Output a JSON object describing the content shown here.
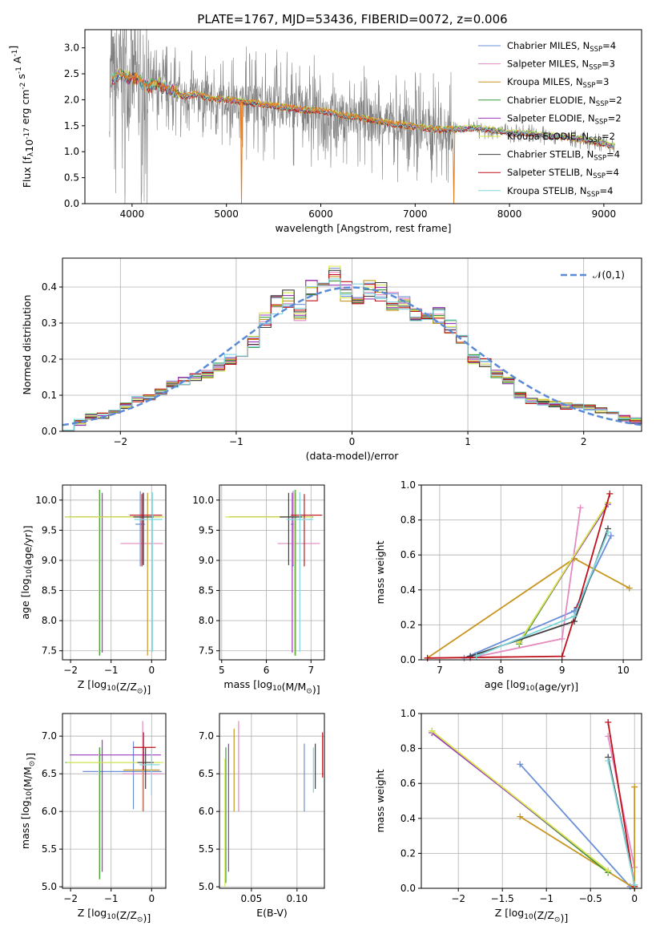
{
  "figure_title": "PLATE=1767, MJD=53436, FIBERID=0072, z=0.006",
  "models": [
    {
      "label": "Chabrier MILES, N$_{SSP}$=4",
      "label_main": "Chabrier MILES, N",
      "label_sub": "SSP",
      "label_end": "=4",
      "color": "#6a8fd8"
    },
    {
      "label": "Salpeter MILES, N$_{SSP}$=3",
      "label_main": "Salpeter MILES, N",
      "label_sub": "SSP",
      "label_end": "=3",
      "color": "#e38ac0"
    },
    {
      "label": "Kroupa MILES, N$_{SSP}$=3",
      "label_main": "Kroupa MILES, N",
      "label_sub": "SSP",
      "label_end": "=3",
      "color": "#c8961e"
    },
    {
      "label": "Chabrier ELODIE, N$_{SSP}$=2",
      "label_main": "Chabrier ELODIE, N",
      "label_sub": "SSP",
      "label_end": "=2",
      "color": "#3a9a3a"
    },
    {
      "label": "Salpeter ELODIE, N$_{SSP}$=2",
      "label_main": "Salpeter ELODIE, N",
      "label_sub": "SSP",
      "label_end": "=2",
      "color": "#9a3ab8"
    },
    {
      "label": "Kroupa ELODIE, N$_{SSP}$=2",
      "label_main": "Kroupa ELODIE, N",
      "label_sub": "SSP",
      "label_end": "=2",
      "color": "#d8e84a"
    },
    {
      "label": "Chabrier STELIB, N$_{SSP}$=4",
      "label_main": "Chabrier STELIB, N",
      "label_sub": "SSP",
      "label_end": "=4",
      "color": "#404040"
    },
    {
      "label": "Salpeter STELIB, N$_{SSP}$=4",
      "label_main": "Salpeter STELIB, N",
      "label_sub": "SSP",
      "label_end": "=4",
      "color": "#c0101a"
    },
    {
      "label": "Kroupa STELIB, N$_{SSP}$=4",
      "label_main": "Kroupa STELIB, N",
      "label_sub": "SSP",
      "label_end": "=4",
      "color": "#7fd6dc"
    }
  ],
  "colors": {
    "data_spectrum": "#808080",
    "model_spectrum": "#e07b20",
    "gauss": "#5b8bd6",
    "grid": "#b0b0b0"
  },
  "chart_data": [
    {
      "type": "line",
      "panel": "spectrum",
      "xlabel": "wavelength [Angstrom, rest frame]",
      "ylabel": "Flux [f$_\\lambda$10$^{-17}$ erg cm$^{-2}$ s$^{-1}$ A$^{-1}$]",
      "xlim": [
        3500,
        9400
      ],
      "ylim": [
        0,
        3.35
      ],
      "xticks": [
        4000,
        5000,
        6000,
        7000,
        8000,
        9000
      ],
      "yticks": [
        0.0,
        0.5,
        1.0,
        1.5,
        2.0,
        2.5,
        3.0
      ],
      "grid": false,
      "legend": "upper right",
      "continuum_x": [
        3760,
        3850,
        3950,
        4050,
        4150,
        4250,
        4400,
        4550,
        4700,
        4850,
        5000,
        5200,
        5400,
        5600,
        5800,
        6000,
        6200,
        6400,
        6600,
        6800,
        7000,
        7200,
        7400,
        7600,
        7800,
        8000,
        8200,
        8400,
        8600,
        8800,
        9000,
        9100
      ],
      "continuum_y": [
        2.35,
        2.5,
        2.4,
        2.42,
        2.25,
        2.3,
        2.2,
        2.05,
        2.1,
        2.0,
        2.0,
        1.95,
        1.9,
        1.85,
        1.8,
        1.78,
        1.7,
        1.65,
        1.58,
        1.52,
        1.48,
        1.42,
        1.42,
        1.45,
        1.42,
        1.35,
        1.35,
        1.3,
        1.28,
        1.22,
        1.15,
        1.1
      ]
    },
    {
      "type": "bar",
      "panel": "residuals",
      "xlabel": "(data-model)/error",
      "ylabel": "Normed distribution",
      "xlim": [
        -2.5,
        2.5
      ],
      "ylim": [
        0,
        0.48
      ],
      "xticks": [
        -2,
        -1,
        0,
        1,
        2
      ],
      "yticks": [
        0.0,
        0.1,
        0.2,
        0.3,
        0.4
      ],
      "grid": true,
      "legend": "upper right",
      "gauss_label": "$\\mathcal{N}(0,1)$",
      "bin_edges": [
        -2.5,
        -2.4,
        -2.3,
        -2.2,
        -2.1,
        -2.0,
        -1.9,
        -1.8,
        -1.7,
        -1.6,
        -1.5,
        -1.4,
        -1.3,
        -1.2,
        -1.1,
        -1.0,
        -0.9,
        -0.8,
        -0.7,
        -0.6,
        -0.5,
        -0.4,
        -0.3,
        -0.2,
        -0.1,
        0.0,
        0.1,
        0.2,
        0.3,
        0.4,
        0.5,
        0.6,
        0.7,
        0.8,
        0.9,
        1.0,
        1.1,
        1.2,
        1.3,
        1.4,
        1.5,
        1.6,
        1.7,
        1.8,
        1.9,
        2.0,
        2.1,
        2.2,
        2.3,
        2.4,
        2.5
      ],
      "hist_mean": [
        0.012,
        0.025,
        0.04,
        0.045,
        0.05,
        0.07,
        0.09,
        0.095,
        0.11,
        0.13,
        0.14,
        0.15,
        0.16,
        0.18,
        0.2,
        0.21,
        0.25,
        0.31,
        0.35,
        0.37,
        0.33,
        0.39,
        0.42,
        0.43,
        0.39,
        0.38,
        0.39,
        0.385,
        0.36,
        0.36,
        0.33,
        0.32,
        0.32,
        0.29,
        0.25,
        0.2,
        0.19,
        0.16,
        0.14,
        0.1,
        0.085,
        0.08,
        0.075,
        0.07,
        0.07,
        0.065,
        0.06,
        0.05,
        0.035,
        0.03
      ],
      "gauss_mean": 0,
      "gauss_sigma": 1
    },
    {
      "type": "scatter",
      "panel": "age_vs_Z",
      "xlabel": "Z [log$_{10}$(Z/Z$_\\odot$)]",
      "ylabel": "age  [log$_{10}$(age/yr)]",
      "xlim": [
        -2.2,
        0.35
      ],
      "ylim": [
        7.35,
        10.25
      ],
      "xticks": [
        -2,
        -1,
        0
      ],
      "yticks": [
        7.5,
        8.0,
        8.5,
        9.0,
        9.5,
        10.0
      ],
      "grid": true,
      "crosses": [
        {
          "model": 0,
          "x": -0.28,
          "xerr": [
            0.12,
            0.12
          ],
          "y": 9.6,
          "yerr": [
            0.7,
            0.55
          ]
        },
        {
          "model": 1,
          "x": -0.22,
          "xerr": [
            0.55,
            0.5
          ],
          "y": 9.28,
          "yerr": [
            0.35,
            0.85
          ]
        },
        {
          "model": 2,
          "x": -0.1,
          "xerr": [
            0.9,
            0.4
          ],
          "y": 9.72,
          "yerr": [
            2.3,
            0.4
          ]
        },
        {
          "model": 3,
          "x": -1.28,
          "xerr": [
            0.85,
            1.5
          ],
          "y": 9.72,
          "yerr": [
            2.3,
            0.45
          ]
        },
        {
          "model": 4,
          "x": -1.22,
          "xerr": [
            0.8,
            1.4
          ],
          "y": 9.72,
          "yerr": [
            2.25,
            0.4
          ]
        },
        {
          "model": 5,
          "x": -1.3,
          "xerr": [
            0.82,
            1.6
          ],
          "y": 9.72,
          "yerr": [
            2.3,
            0.45
          ]
        },
        {
          "model": 6,
          "x": -0.2,
          "xerr": [
            0.25,
            0.25
          ],
          "y": 9.72,
          "yerr": [
            0.8,
            0.4
          ]
        },
        {
          "model": 7,
          "x": -0.24,
          "xerr": [
            0.3,
            0.5
          ],
          "y": 9.75,
          "yerr": [
            0.85,
            0.35
          ]
        },
        {
          "model": 8,
          "x": 0.02,
          "xerr": [
            0.45,
            0.25
          ],
          "y": 9.68,
          "yerr": [
            2.2,
            0.45
          ]
        }
      ]
    },
    {
      "type": "scatter",
      "panel": "age_vs_mass",
      "xlabel": "mass [log$_{10}$(M/M$_\\odot$)]",
      "ylabel": "",
      "xlim": [
        4.95,
        7.3
      ],
      "ylim": [
        7.35,
        10.25
      ],
      "xticks": [
        5,
        6,
        7
      ],
      "yticks": [
        7.5,
        8.0,
        8.5,
        9.0,
        9.5,
        10.0
      ],
      "grid": true,
      "crosses": [
        {
          "model": 0,
          "x": 6.6,
          "xerr": [
            0.05,
            0.05
          ],
          "y": 9.6,
          "yerr": [
            0.7,
            0.55
          ]
        },
        {
          "model": 1,
          "x": 6.6,
          "xerr": [
            0.35,
            0.6
          ],
          "y": 9.28,
          "yerr": [
            0.35,
            0.85
          ]
        },
        {
          "model": 2,
          "x": 6.65,
          "xerr": [
            1.5,
            0.3
          ],
          "y": 9.72,
          "yerr": [
            2.3,
            0.4
          ]
        },
        {
          "model": 3,
          "x": 6.65,
          "xerr": [
            1.5,
            0.4
          ],
          "y": 9.72,
          "yerr": [
            2.3,
            0.45
          ]
        },
        {
          "model": 4,
          "x": 6.58,
          "xerr": [
            1.4,
            0.4
          ],
          "y": 9.72,
          "yerr": [
            2.25,
            0.4
          ]
        },
        {
          "model": 5,
          "x": 6.63,
          "xerr": [
            1.55,
            0.4
          ],
          "y": 9.72,
          "yerr": [
            2.3,
            0.45
          ]
        },
        {
          "model": 6,
          "x": 6.5,
          "xerr": [
            0.2,
            0.3
          ],
          "y": 9.72,
          "yerr": [
            0.8,
            0.4
          ]
        },
        {
          "model": 7,
          "x": 6.85,
          "xerr": [
            0.3,
            0.4
          ],
          "y": 9.75,
          "yerr": [
            0.85,
            0.35
          ]
        },
        {
          "model": 8,
          "x": 6.75,
          "xerr": [
            0.3,
            0.3
          ],
          "y": 9.68,
          "yerr": [
            2.2,
            0.45
          ]
        }
      ]
    },
    {
      "type": "line",
      "panel": "mass_weight_vs_age",
      "xlabel": "age  [log$_{10}$(age/yr)]",
      "ylabel": "mass weight",
      "xlim": [
        6.7,
        10.3
      ],
      "ylim": [
        0,
        1.0
      ],
      "xticks": [
        7,
        8,
        9,
        10
      ],
      "yticks": [
        0.0,
        0.2,
        0.4,
        0.6,
        0.8,
        1.0
      ],
      "grid": true,
      "series": [
        {
          "model": 0,
          "x": [
            7.4,
            9.2,
            9.8
          ],
          "y": [
            0.01,
            0.28,
            0.71
          ]
        },
        {
          "model": 1,
          "x": [
            7.5,
            9.0,
            9.3
          ],
          "y": [
            0.01,
            0.12,
            0.87
          ]
        },
        {
          "model": 2,
          "x": [
            6.8,
            9.2,
            10.1
          ],
          "y": [
            0.01,
            0.58,
            0.41
          ]
        },
        {
          "model": 3,
          "x": [
            8.3,
            9.75
          ],
          "y": [
            0.09,
            0.9
          ]
        },
        {
          "model": 4,
          "x": [
            8.3,
            9.75
          ],
          "y": [
            0.1,
            0.89
          ]
        },
        {
          "model": 5,
          "x": [
            8.3,
            9.75
          ],
          "y": [
            0.1,
            0.9
          ]
        },
        {
          "model": 6,
          "x": [
            7.5,
            9.2,
            9.75
          ],
          "y": [
            0.02,
            0.22,
            0.75
          ]
        },
        {
          "model": 7,
          "x": [
            6.8,
            9.0,
            9.25,
            9.78
          ],
          "y": [
            0.01,
            0.02,
            0.3,
            0.95
          ]
        },
        {
          "model": 8,
          "x": [
            7.6,
            9.2,
            9.75
          ],
          "y": [
            0.02,
            0.25,
            0.73
          ]
        }
      ]
    },
    {
      "type": "scatter",
      "panel": "mass_vs_Z",
      "xlabel": "Z [log$_{10}$(Z/Z$_\\odot$)]",
      "ylabel": "mass [log$_{10}$(M/M$_\\odot$)]",
      "xlim": [
        -2.2,
        0.35
      ],
      "ylim": [
        4.98,
        7.3
      ],
      "xticks": [
        -2,
        -1,
        0
      ],
      "yticks": [
        5.0,
        5.5,
        6.0,
        6.5,
        7.0
      ],
      "grid": true,
      "crosses": [
        {
          "model": 0,
          "x": -0.45,
          "xerr": [
            1.25,
            0.7
          ],
          "y": 6.53,
          "yerr": [
            0.5,
            0.4
          ]
        },
        {
          "model": 1,
          "x": -0.22,
          "xerr": [
            0.5,
            0.5
          ],
          "y": 6.5,
          "yerr": [
            0.5,
            0.7
          ]
        },
        {
          "model": 2,
          "x": -0.2,
          "xerr": [
            0.5,
            0.4
          ],
          "y": 6.55,
          "yerr": [
            0.55,
            0.3
          ]
        },
        {
          "model": 3,
          "x": -1.28,
          "xerr": [
            0.85,
            1.5
          ],
          "y": 6.65,
          "yerr": [
            1.55,
            0.2
          ]
        },
        {
          "model": 4,
          "x": -1.22,
          "xerr": [
            0.8,
            1.45
          ],
          "y": 6.75,
          "yerr": [
            1.55,
            0.2
          ]
        },
        {
          "model": 5,
          "x": -1.3,
          "xerr": [
            0.8,
            1.6
          ],
          "y": 6.65,
          "yerr": [
            1.55,
            0.2
          ]
        },
        {
          "model": 6,
          "x": -0.15,
          "xerr": [
            0.2,
            0.2
          ],
          "y": 6.65,
          "yerr": [
            0.35,
            0.2
          ]
        },
        {
          "model": 7,
          "x": -0.2,
          "xerr": [
            0.25,
            0.3
          ],
          "y": 6.85,
          "yerr": [
            0.3,
            0.2
          ]
        },
        {
          "model": 8,
          "x": 0.0,
          "xerr": [
            0.3,
            0.2
          ],
          "y": 6.62,
          "yerr": [
            0.4,
            0.2
          ]
        }
      ]
    },
    {
      "type": "scatter",
      "panel": "mass_vs_ebv",
      "xlabel": "E(B-V)",
      "ylabel": "",
      "xlim": [
        0.015,
        0.13
      ],
      "ylim": [
        4.98,
        7.3
      ],
      "xticks": [
        0.05,
        0.1
      ],
      "xticklabels": [
        "0.05",
        "0.10"
      ],
      "yticks": [
        5.0,
        5.5,
        6.0,
        6.5,
        7.0
      ],
      "grid": true,
      "crosses": [
        {
          "model": 0,
          "x": 0.108,
          "xerr": [
            0,
            0
          ],
          "y": 6.45,
          "yerr": [
            0.45,
            0.45
          ]
        },
        {
          "model": 1,
          "x": 0.036,
          "xerr": [
            0,
            0
          ],
          "y": 6.6,
          "yerr": [
            0.6,
            0.6
          ]
        },
        {
          "model": 2,
          "x": 0.031,
          "xerr": [
            0,
            0
          ],
          "y": 6.55,
          "yerr": [
            0.55,
            0.55
          ]
        },
        {
          "model": 3,
          "x": 0.022,
          "xerr": [
            0,
            0
          ],
          "y": 5.95,
          "yerr": [
            0.9,
            0.9
          ]
        },
        {
          "model": 4,
          "x": 0.025,
          "xerr": [
            0,
            0
          ],
          "y": 6.05,
          "yerr": [
            0.85,
            0.85
          ]
        },
        {
          "model": 5,
          "x": 0.021,
          "xerr": [
            0,
            0
          ],
          "y": 5.85,
          "yerr": [
            0.85,
            0.85
          ]
        },
        {
          "model": 6,
          "x": 0.12,
          "xerr": [
            0,
            0
          ],
          "y": 6.6,
          "yerr": [
            0.3,
            0.3
          ]
        },
        {
          "model": 7,
          "x": 0.128,
          "xerr": [
            0,
            0
          ],
          "y": 6.75,
          "yerr": [
            0.3,
            0.3
          ]
        },
        {
          "model": 8,
          "x": 0.118,
          "xerr": [
            0,
            0
          ],
          "y": 6.55,
          "yerr": [
            0.3,
            0.3
          ]
        }
      ]
    },
    {
      "type": "line",
      "panel": "mass_weight_vs_Z",
      "xlabel": "Z [log$_{10}$(Z/Z$_\\odot$)]",
      "ylabel": "mass weight",
      "xlim": [
        -2.42,
        0.08
      ],
      "ylim": [
        0,
        1.0
      ],
      "xticks": [
        -2.0,
        -1.5,
        -1.0,
        -0.5,
        0.0
      ],
      "yticks": [
        0.0,
        0.2,
        0.4,
        0.6,
        0.8,
        1.0
      ],
      "grid": true,
      "series": [
        {
          "model": 0,
          "x": [
            -1.3,
            -0.05
          ],
          "y": [
            0.71,
            0.01
          ]
        },
        {
          "model": 1,
          "x": [
            -0.3,
            0.0
          ],
          "y": [
            0.87,
            0.12
          ]
        },
        {
          "model": 2,
          "x": [
            -1.3,
            0.0,
            0.0
          ],
          "y": [
            0.41,
            0.0,
            0.58
          ]
        },
        {
          "model": 3,
          "x": [
            -2.3,
            -0.3
          ],
          "y": [
            0.9,
            0.09
          ]
        },
        {
          "model": 4,
          "x": [
            -2.3,
            -0.3
          ],
          "y": [
            0.89,
            0.1
          ]
        },
        {
          "model": 5,
          "x": [
            -2.3,
            -0.3
          ],
          "y": [
            0.9,
            0.1
          ]
        },
        {
          "model": 6,
          "x": [
            -0.3,
            0.0
          ],
          "y": [
            0.75,
            0.02
          ]
        },
        {
          "model": 7,
          "x": [
            -0.3,
            0.0
          ],
          "y": [
            0.95,
            0.01
          ]
        },
        {
          "model": 8,
          "x": [
            -0.3,
            0.0
          ],
          "y": [
            0.73,
            0.02
          ]
        }
      ]
    }
  ]
}
